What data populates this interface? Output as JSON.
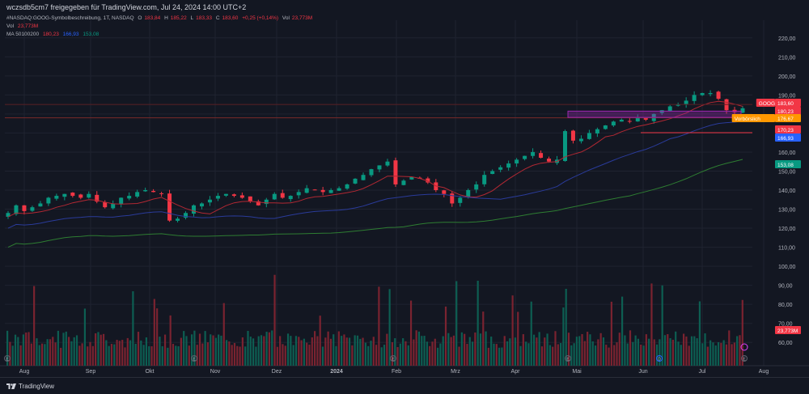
{
  "header": {
    "text": "wczsdb5cm7 freigegeben für TradingView.com, Jul 24, 2024 14:00 UTC+2"
  },
  "legend": {
    "symbol_line": {
      "name": "#NASDAQ:GOOG-Symbolbeschreibung, 1T, NASDAQ",
      "o_label": "O",
      "o_value": "183,84",
      "h_label": "H",
      "h_value": "185,22",
      "l_label": "L",
      "l_value": "183,33",
      "c_label": "C",
      "c_value": "183,60",
      "change": "+0,25 (+0,14%)",
      "vol_label": "Vol",
      "vol_value": "23,773M"
    },
    "vol_line": {
      "label": "Vol",
      "value": "23,773M"
    },
    "ma_line": {
      "label": "MA 50100200",
      "v1": "180,23",
      "v2": "166,93",
      "v3": "153,08"
    }
  },
  "footer": {
    "brand": "TradingView"
  },
  "colors": {
    "up": "#089981",
    "down": "#f23645",
    "ma50": "#b22833",
    "ma100": "#2a3b9a",
    "ma200": "#2e7d32",
    "zone": "#9c27b0",
    "grid": "#1f2330"
  },
  "icons": [
    "tradingview-logo-icon",
    "earnings-icon",
    "dividend-icon",
    "lightning-icon"
  ],
  "chart_data": {
    "type": "candlestick",
    "price_axis": {
      "ylim": [
        55,
        225
      ],
      "ticks": [
        "220,00",
        "210,00",
        "200,00",
        "190,00",
        "180,00",
        "170,00",
        "160,00",
        "150,00",
        "140,00",
        "130,00",
        "120,00",
        "110,00",
        "100,00",
        "90,00",
        "80,00",
        "70,00",
        "60,00"
      ]
    },
    "time_axis": {
      "labels": [
        "Aug",
        "Sep",
        "Okt",
        "Nov",
        "Dez",
        "2024",
        "Feb",
        "Mrz",
        "Apr",
        "Mai",
        "Jun",
        "Jul",
        "Aug"
      ]
    },
    "price_labels": [
      {
        "text": "GOOG",
        "value": "183,60",
        "color": "#f23645"
      },
      {
        "text": "",
        "value": "180,23",
        "color": "#f23645"
      },
      {
        "text": "Vorbörslich",
        "value": "176,67",
        "color": "#ff9800"
      },
      {
        "text": "",
        "value": "170,23",
        "color": "#f23645"
      },
      {
        "text": "",
        "value": "166,93",
        "color": "#2962ff"
      },
      {
        "text": "",
        "value": "153,08",
        "color": "#089981"
      },
      {
        "text": "",
        "value": "23,773M",
        "color": "#f23645"
      }
    ],
    "keypoints": [
      [
        "Aug",
        128
      ],
      [
        "Aug",
        132
      ],
      [
        "Aug",
        129
      ],
      [
        "Aug",
        131
      ],
      [
        "Aug",
        133
      ],
      [
        "Aug",
        136
      ],
      [
        "Aug",
        137
      ],
      [
        "Aug",
        138
      ],
      [
        "Sep",
        137
      ],
      [
        "Sep",
        136
      ],
      [
        "Sep",
        138
      ],
      [
        "Sep",
        134
      ],
      [
        "Sep",
        131
      ],
      [
        "Sep",
        133
      ],
      [
        "Sep",
        136
      ],
      [
        "Sep",
        137
      ],
      [
        "Sep",
        139
      ],
      [
        "Okt",
        140
      ],
      [
        "Okt",
        139
      ],
      [
        "Okt",
        138
      ],
      [
        "Okt",
        124
      ],
      [
        "Okt",
        125
      ],
      [
        "Okt",
        128
      ],
      [
        "Okt",
        132
      ],
      [
        "Nov",
        133
      ],
      [
        "Nov",
        135
      ],
      [
        "Nov",
        137
      ],
      [
        "Nov",
        138
      ],
      [
        "Nov",
        137
      ],
      [
        "Nov",
        136
      ],
      [
        "Nov",
        134
      ],
      [
        "Dez",
        132
      ],
      [
        "Dez",
        135
      ],
      [
        "Dez",
        138
      ],
      [
        "Dez",
        136
      ],
      [
        "Dez",
        137
      ],
      [
        "Dez",
        139
      ],
      [
        "Dez",
        141
      ],
      [
        "Dez",
        140
      ],
      [
        "Dez",
        139
      ],
      [
        "2024",
        140
      ],
      [
        "2024",
        141
      ],
      [
        "2024",
        143
      ],
      [
        "2024",
        146
      ],
      [
        "2024",
        148
      ],
      [
        "2024",
        151
      ],
      [
        "2024",
        153
      ],
      [
        "2024",
        155
      ],
      [
        "Feb",
        143
      ],
      [
        "Feb",
        145
      ],
      [
        "Feb",
        147
      ],
      [
        "Feb",
        146
      ],
      [
        "Feb",
        144
      ],
      [
        "Feb",
        140
      ],
      [
        "Feb",
        138
      ],
      [
        "Mrz",
        133
      ],
      [
        "Mrz",
        136
      ],
      [
        "Mrz",
        140
      ],
      [
        "Mrz",
        143
      ],
      [
        "Mrz",
        148
      ],
      [
        "Mrz",
        150
      ],
      [
        "Mrz",
        152
      ],
      [
        "Apr",
        154
      ],
      [
        "Apr",
        156
      ],
      [
        "Apr",
        158
      ],
      [
        "Apr",
        160
      ],
      [
        "Apr",
        157
      ],
      [
        "Apr",
        155
      ],
      [
        "Apr",
        156
      ],
      [
        "Mai",
        171
      ],
      [
        "Mai",
        166
      ],
      [
        "Mai",
        167
      ],
      [
        "Mai",
        170
      ],
      [
        "Mai",
        172
      ],
      [
        "Mai",
        174
      ],
      [
        "Mai",
        176
      ],
      [
        "Mai",
        177
      ],
      [
        "Jun",
        176
      ],
      [
        "Jun",
        178
      ],
      [
        "Jun",
        177
      ],
      [
        "Jun",
        180
      ],
      [
        "Jun",
        182
      ],
      [
        "Jun",
        184
      ],
      [
        "Jun",
        185
      ],
      [
        "Jun",
        187
      ],
      [
        "Jul",
        190
      ],
      [
        "Jul",
        191
      ],
      [
        "Jul",
        191
      ],
      [
        "Jul",
        188
      ],
      [
        "Jul",
        182
      ],
      [
        "Jul",
        181
      ],
      [
        "Jul",
        183
      ]
    ],
    "volume": {
      "ylim": [
        0,
        100
      ],
      "note": ""
    }
  }
}
